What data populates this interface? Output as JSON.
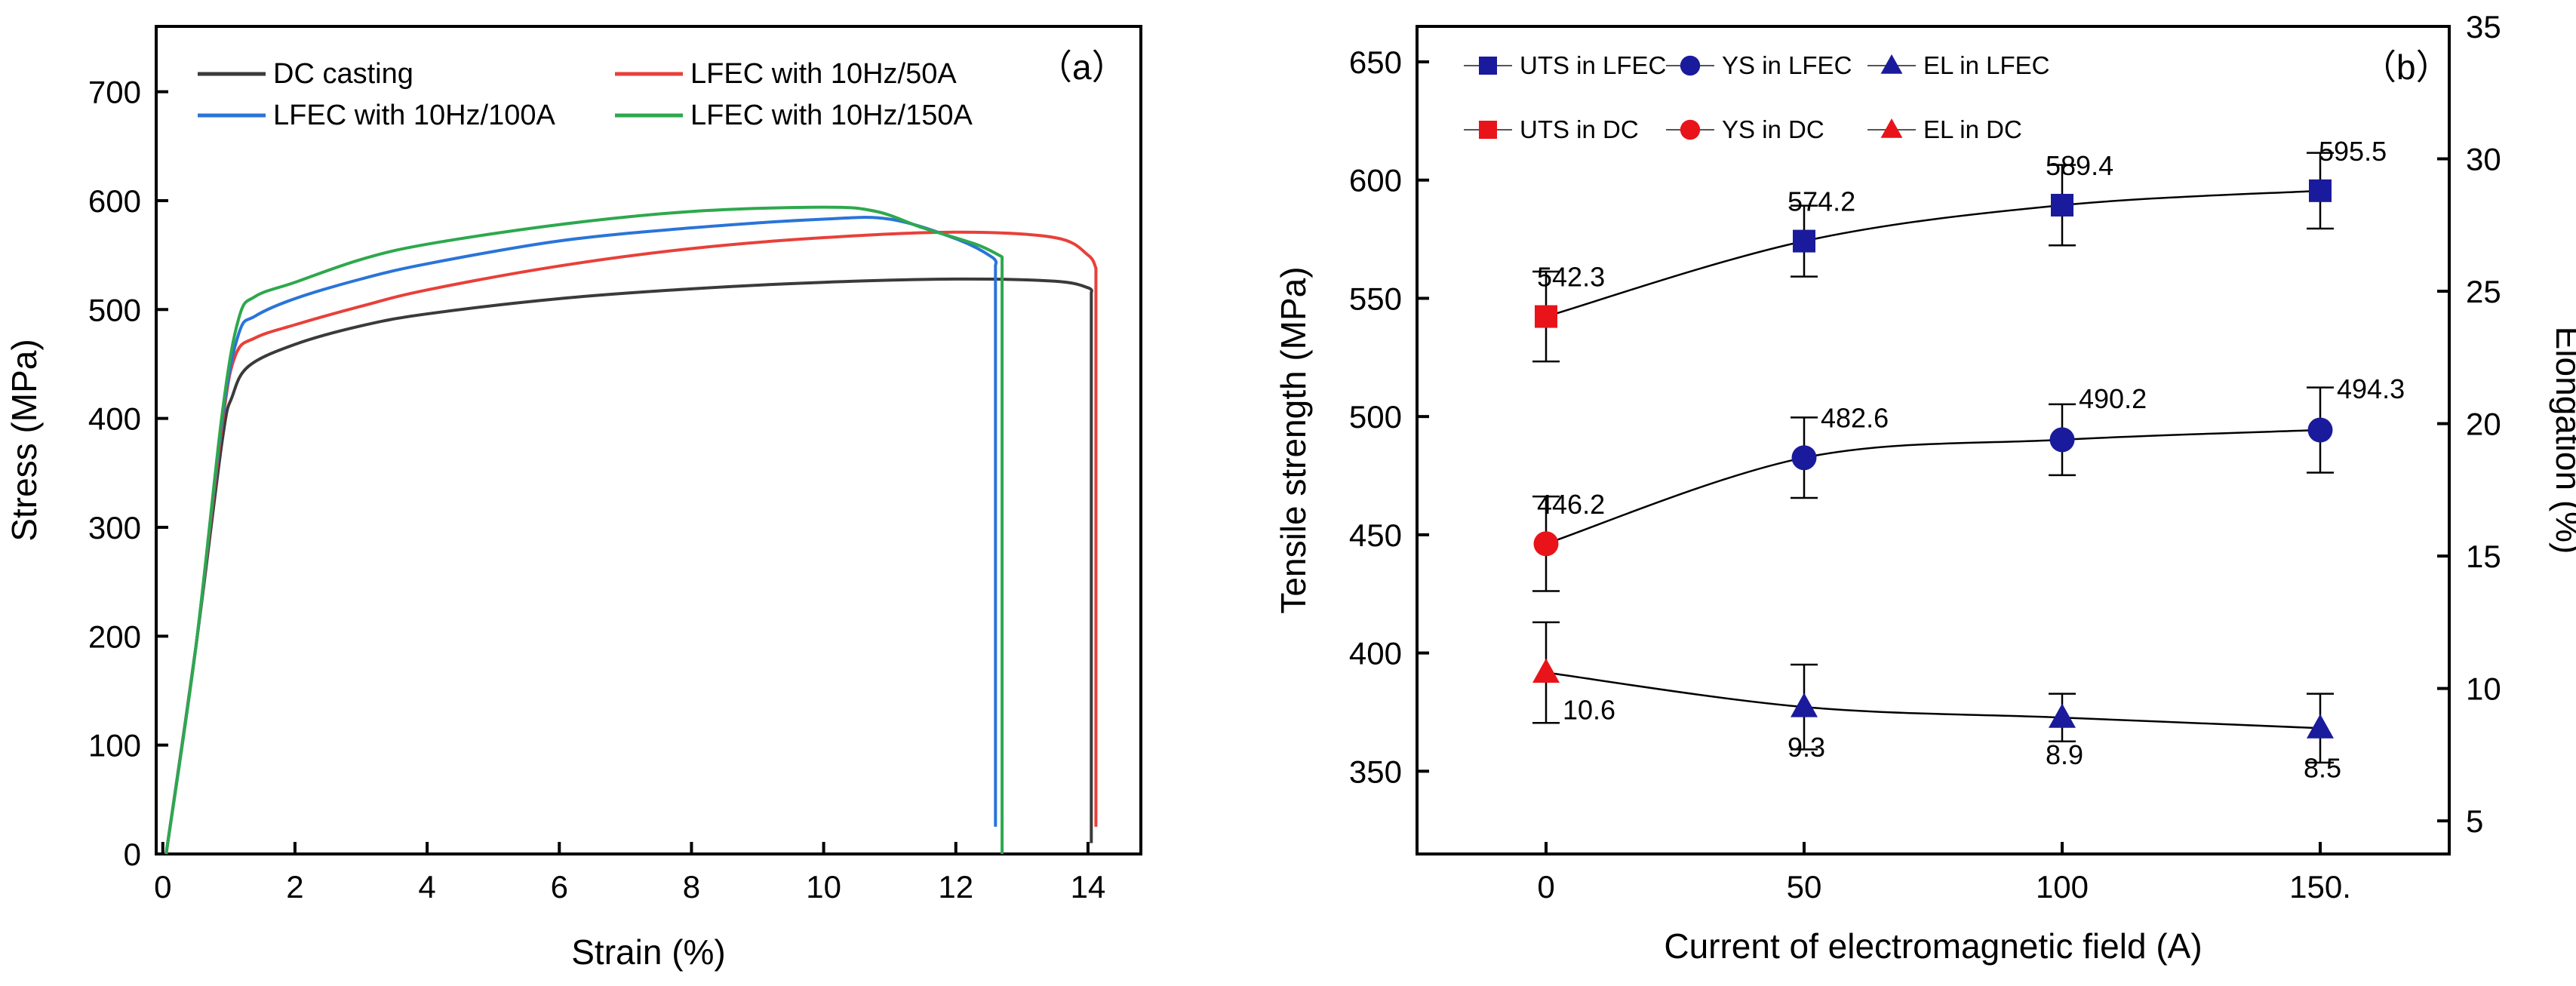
{
  "chart_data": [
    {
      "panel": "(a)",
      "type": "line",
      "xlabel": "Strain (%)",
      "ylabel": "Stress (MPa)",
      "xlim": [
        -0.1,
        14.8
      ],
      "ylim": [
        0,
        760
      ],
      "xticks": [
        0,
        2,
        4,
        6,
        8,
        10,
        12,
        14
      ],
      "yticks": [
        0,
        100,
        200,
        300,
        400,
        500,
        600,
        700
      ],
      "legend_location": "top",
      "series": [
        {
          "name": "DC casting",
          "color": "#3a3a3a",
          "points": [
            [
              0.05,
              0
            ],
            [
              0.5,
              190
            ],
            [
              0.9,
              380
            ],
            [
              1.05,
              420
            ],
            [
              1.3,
              448
            ],
            [
              2,
              468
            ],
            [
              3,
              485
            ],
            [
              4,
              496
            ],
            [
              6,
              510
            ],
            [
              8,
              519
            ],
            [
              10,
              525
            ],
            [
              12,
              528
            ],
            [
              13.5,
              526
            ],
            [
              14,
              520
            ],
            [
              14.05,
              515
            ],
            [
              14.05,
              10
            ]
          ]
        },
        {
          "name": "LFEC with 10Hz/50A",
          "color": "#e8403a",
          "points": [
            [
              0.05,
              0
            ],
            [
              0.5,
              190
            ],
            [
              0.9,
              395
            ],
            [
              1.1,
              458
            ],
            [
              1.4,
              474
            ],
            [
              2,
              486
            ],
            [
              3,
              503
            ],
            [
              4,
              518
            ],
            [
              6,
              540
            ],
            [
              8,
              556
            ],
            [
              10,
              566
            ],
            [
              12,
              571
            ],
            [
              13.5,
              566
            ],
            [
              14,
              550
            ],
            [
              14.12,
              538
            ],
            [
              14.12,
              25
            ]
          ]
        },
        {
          "name": "LFEC with 10Hz/100A",
          "color": "#2a74d8",
          "points": [
            [
              0.05,
              0
            ],
            [
              0.5,
              190
            ],
            [
              0.9,
              400
            ],
            [
              1.15,
              478
            ],
            [
              1.4,
              494
            ],
            [
              2,
              510
            ],
            [
              3,
              528
            ],
            [
              4,
              542
            ],
            [
              6,
              563
            ],
            [
              8,
              575
            ],
            [
              10,
              583
            ],
            [
              11,
              583
            ],
            [
              12,
              565
            ],
            [
              12.55,
              548
            ],
            [
              12.6,
              540
            ],
            [
              12.6,
              25
            ]
          ]
        },
        {
          "name": "LFEC with 10Hz/150A",
          "color": "#2ea84d",
          "points": [
            [
              0.05,
              0
            ],
            [
              0.5,
              190
            ],
            [
              0.9,
              405
            ],
            [
              1.15,
              492
            ],
            [
              1.4,
              512
            ],
            [
              2,
              525
            ],
            [
              3,
              546
            ],
            [
              4,
              560
            ],
            [
              6,
              578
            ],
            [
              8,
              590
            ],
            [
              10,
              594
            ],
            [
              10.8,
              590
            ],
            [
              11.5,
              575
            ],
            [
              12.3,
              560
            ],
            [
              12.65,
              550
            ],
            [
              12.7,
              548
            ],
            [
              12.7,
              0
            ]
          ]
        }
      ]
    },
    {
      "panel": "(b)",
      "type": "scatter",
      "xlabel": "Current of electromagnetic field (A)",
      "ylabel": "Tensile strength (MPa)",
      "y2label": "Elongation (%)",
      "xlim": [
        -25,
        175
      ],
      "ylim": [
        315,
        665
      ],
      "y2lim": [
        3.75,
        35
      ],
      "xticks": [
        0,
        50,
        100,
        150
      ],
      "xtick_labels": [
        "0",
        "50",
        "100",
        "150."
      ],
      "yticks": [
        350,
        400,
        450,
        500,
        550,
        600,
        650
      ],
      "y2ticks": [
        5,
        10,
        15,
        20,
        25,
        30,
        35
      ],
      "legend_location": "top-left",
      "legend": [
        {
          "name": "UTS in LFEC",
          "marker": "square",
          "color": "#1a1a9c"
        },
        {
          "name": "YS in LFEC",
          "marker": "circle",
          "color": "#1a1a9c"
        },
        {
          "name": "EL in LFEC",
          "marker": "triangle",
          "color": "#1a1a9c"
        },
        {
          "name": "UTS in DC",
          "marker": "square",
          "color": "#e8141a"
        },
        {
          "name": "YS in DC",
          "marker": "circle",
          "color": "#e8141a"
        },
        {
          "name": "EL in DC",
          "marker": "triangle",
          "color": "#e8141a"
        }
      ],
      "series": [
        {
          "name": "UTS",
          "axis": "left",
          "marker": "square",
          "x": [
            0,
            50,
            100,
            150
          ],
          "values": [
            542.3,
            574.2,
            589.4,
            595.5
          ],
          "errors": [
            19,
            15,
            17,
            16
          ],
          "labels": [
            "542.3",
            "574.2",
            "589.4",
            "595.5"
          ]
        },
        {
          "name": "YS",
          "axis": "left",
          "marker": "circle",
          "x": [
            0,
            50,
            100,
            150
          ],
          "values": [
            446.2,
            482.6,
            490.2,
            494.3
          ],
          "errors": [
            20,
            17,
            15,
            18
          ],
          "labels": [
            "446.2",
            "482.6",
            "490.2",
            "494.3"
          ]
        },
        {
          "name": "EL",
          "axis": "right",
          "marker": "triangle",
          "x": [
            0,
            50,
            100,
            150
          ],
          "values": [
            10.6,
            9.3,
            8.9,
            8.5
          ],
          "errors": [
            1.9,
            1.6,
            0.9,
            1.3
          ],
          "labels": [
            "10.6",
            "9.3",
            "8.9",
            "8.5"
          ]
        }
      ],
      "colors": {
        "dc": "#e8141a",
        "lfec": "#1a1a9c"
      }
    }
  ]
}
